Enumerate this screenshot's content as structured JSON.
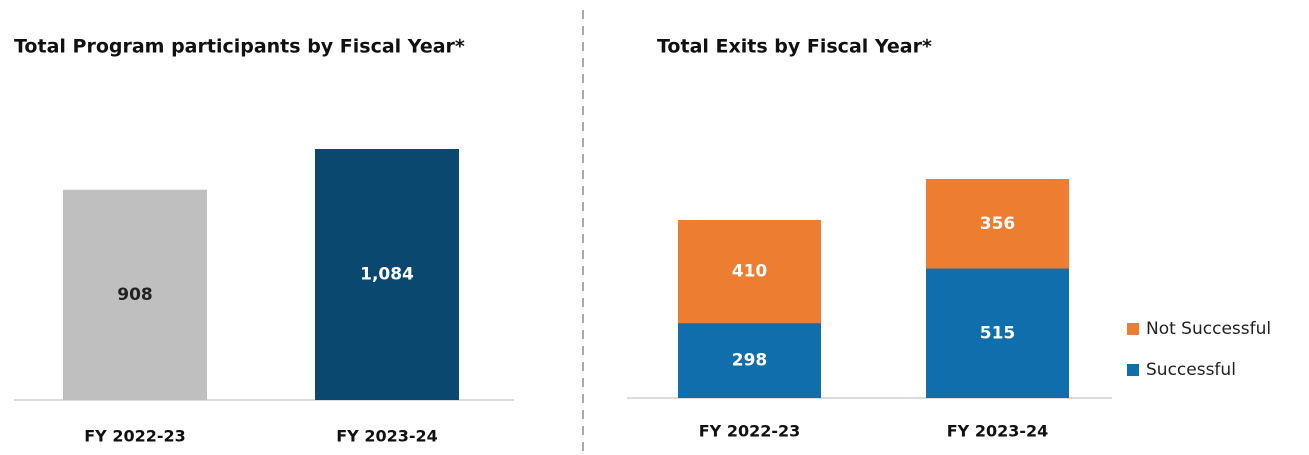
{
  "chart_data": [
    {
      "type": "bar",
      "title": "Total Program participants by Fiscal Year*",
      "categories": [
        "FY 2022-23",
        "FY 2023-24"
      ],
      "values": [
        908,
        1084
      ],
      "value_labels": [
        "908",
        "1,084"
      ],
      "colors": [
        "#bfbfbf",
        "#0b4870"
      ]
    },
    {
      "type": "stacked_bar",
      "title": "Total Exits by Fiscal Year*",
      "categories": [
        "FY 2022-23",
        "FY 2023-24"
      ],
      "series": [
        {
          "name": "Successful",
          "color": "#106ead",
          "values": [
            298,
            515
          ]
        },
        {
          "name": "Not Successful",
          "color": "#ed7d31",
          "values": [
            410,
            356
          ]
        }
      ],
      "legend": "right"
    }
  ]
}
